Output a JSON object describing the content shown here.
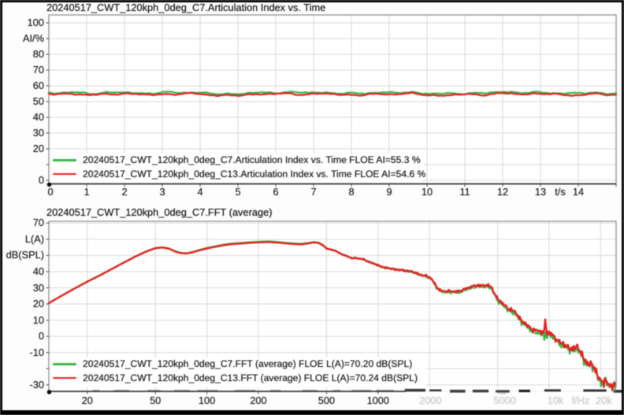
{
  "window": {
    "frame_color": "#000000",
    "background": "#ffffff"
  },
  "colors": {
    "series_green": "#3cb54a",
    "series_red": "#e32120",
    "grid": "#d8d8d8",
    "frame": "#8a8a8a",
    "axis": "#35353a",
    "text": "#161616"
  },
  "chart_data": [
    {
      "id": "articulation_index_vs_time",
      "type": "line",
      "title": "20240517_CWT_120kph_0deg_C7.Articulation Index vs. Time",
      "grid": true,
      "legend_position": "bottom-left-inside",
      "x_axis": {
        "label": "t/s",
        "scale": "linear",
        "min": 0,
        "max": 15,
        "ticks": [
          {
            "v": 0,
            "label": "0"
          },
          {
            "v": 1,
            "label": "1"
          },
          {
            "v": 2,
            "label": "2"
          },
          {
            "v": 3,
            "label": "3"
          },
          {
            "v": 4,
            "label": "4"
          },
          {
            "v": 5,
            "label": "5"
          },
          {
            "v": 6,
            "label": "6"
          },
          {
            "v": 7,
            "label": "7"
          },
          {
            "v": 8,
            "label": "8"
          },
          {
            "v": 9,
            "label": "9"
          },
          {
            "v": 10,
            "label": "10"
          },
          {
            "v": 11,
            "label": "11"
          },
          {
            "v": 12,
            "label": "12"
          },
          {
            "v": 13,
            "label": "13"
          },
          {
            "v": 14,
            "label": "14"
          }
        ]
      },
      "y_axis": {
        "label": "AI/%",
        "min": -2.25,
        "max": 105.25,
        "ticks": [
          {
            "v": 100,
            "label": "100"
          },
          {
            "v": 90,
            "label": "AI/%"
          },
          {
            "v": 80,
            "label": "80"
          },
          {
            "v": 70,
            "label": "70"
          },
          {
            "v": 60,
            "label": "60"
          },
          {
            "v": 50,
            "label": "50"
          },
          {
            "v": 40,
            "label": "40"
          },
          {
            "v": 30,
            "label": "30"
          },
          {
            "v": 20,
            "label": "20"
          },
          {
            "v": 10,
            "label": ""
          },
          {
            "v": 0,
            "label": "0"
          }
        ]
      },
      "legend": [
        {
          "series": "green",
          "label": "20240517_CWT_120kph_0deg_C7.Articulation Index vs. Time FLOE AI=55.3 %"
        },
        {
          "series": "red",
          "label": "20240517_CWT_120kph_0deg_C13.Articulation Index vs. Time FLOE AI=54.6 %"
        }
      ],
      "series": [
        {
          "name": "20240517_CWT_120kph_0deg_C7.Articulation Index vs. Time",
          "color_key": "series_green",
          "overall_value": "AI=55.3 %",
          "mean": 55.5
        },
        {
          "name": "20240517_CWT_120kph_0deg_C13.Articulation Index vs. Time",
          "color_key": "series_red",
          "overall_value": "AI=54.6 %",
          "mean": 54.6
        }
      ]
    },
    {
      "id": "fft_average",
      "type": "line",
      "title": "20240517_CWT_120kph_0deg_C7.FFT (average)",
      "grid": true,
      "legend_position": "bottom-left-inside",
      "x_axis": {
        "label": "f/Hz",
        "scale": "log",
        "min": 11.9,
        "max": 24600,
        "ticks": [
          {
            "v": 20,
            "label": "20"
          },
          {
            "v": 50,
            "label": "50"
          },
          {
            "v": 100,
            "label": "100"
          },
          {
            "v": 200,
            "label": "200"
          },
          {
            "v": 500,
            "label": "500"
          },
          {
            "v": 1000,
            "label": "1000"
          },
          {
            "v": 2000,
            "label": "2000",
            "eroded": true
          },
          {
            "v": 5000,
            "label": "5000",
            "eroded": true
          },
          {
            "v": 10000,
            "label": "10k",
            "eroded": true
          },
          {
            "v": 20000,
            "label": "20k",
            "eroded": true
          }
        ]
      },
      "y_axis": {
        "label": "dB(SPL)",
        "min": -34,
        "max": 71,
        "ticks": [
          {
            "v": 70,
            "label": "70"
          },
          {
            "v": 60,
            "label": "L(A)"
          },
          {
            "v": 50,
            "label": "dB(SPL)"
          },
          {
            "v": 40,
            "label": "40"
          },
          {
            "v": 30,
            "label": "30"
          },
          {
            "v": 20,
            "label": "20"
          },
          {
            "v": 10,
            "label": "10"
          },
          {
            "v": 0,
            "label": "0"
          },
          {
            "v": -10,
            "label": "-10"
          },
          {
            "v": -20,
            "label": ""
          },
          {
            "v": -30,
            "label": "-30"
          }
        ]
      },
      "legend": [
        {
          "series": "green",
          "label": "20240517_CWT_120kph_0deg_C7.FFT (average) FLOE L(A)=70.20 dB(SPL)"
        },
        {
          "series": "red",
          "label": "20240517_CWT_120kph_0deg_C13.FFT (average) FLOE L(A)=70.24 dB(SPL)"
        }
      ],
      "series": [
        {
          "name": "20240517_CWT_120kph_0deg_C7.FFT (average)",
          "color_key": "series_green",
          "overall_value": "L(A)=70.20 dB(SPL)"
        },
        {
          "name": "20240517_CWT_120kph_0deg_C13.FFT (average)",
          "color_key": "series_red",
          "overall_value": "L(A)=70.24 dB(SPL)"
        }
      ],
      "red_anchors": [
        [
          11.9,
          20.5
        ],
        [
          14,
          24.8
        ],
        [
          17,
          29.8
        ],
        [
          20,
          33.8
        ],
        [
          24,
          38.0
        ],
        [
          28,
          41.8
        ],
        [
          33,
          45.8
        ],
        [
          38,
          49.2
        ],
        [
          44,
          52.3
        ],
        [
          50,
          54.5
        ],
        [
          55,
          54.9
        ],
        [
          60,
          54.2
        ],
        [
          65,
          52.5
        ],
        [
          70,
          51.5
        ],
        [
          76,
          51.2
        ],
        [
          83,
          52.0
        ],
        [
          90,
          53.1
        ],
        [
          100,
          54.3
        ],
        [
          110,
          55.2
        ],
        [
          125,
          56.3
        ],
        [
          140,
          57.0
        ],
        [
          160,
          57.4
        ],
        [
          180,
          57.8
        ],
        [
          205,
          58.1
        ],
        [
          230,
          58.3
        ],
        [
          260,
          57.9
        ],
        [
          300,
          57.3
        ],
        [
          330,
          57.0
        ],
        [
          360,
          56.9
        ],
        [
          390,
          57.4
        ],
        [
          420,
          58.0
        ],
        [
          450,
          57.7
        ],
        [
          480,
          56.0
        ],
        [
          500,
          54.2
        ],
        [
          530,
          53.6
        ],
        [
          560,
          53.0
        ],
        [
          600,
          51.2
        ],
        [
          630,
          50.3
        ],
        [
          660,
          49.5
        ],
        [
          700,
          48.2
        ],
        [
          740,
          48.5
        ],
        [
          780,
          48.0
        ],
        [
          820,
          47.6
        ],
        [
          860,
          46.6
        ],
        [
          920,
          45.4
        ],
        [
          1000,
          43.9
        ],
        [
          1100,
          42.4
        ],
        [
          1240,
          41.6
        ],
        [
          1400,
          40.8
        ],
        [
          1550,
          40.2
        ],
        [
          1700,
          38.8
        ],
        [
          1850,
          37.6
        ],
        [
          2000,
          36.6
        ],
        [
          2080,
          35.0
        ],
        [
          2200,
          30.5
        ],
        [
          2300,
          28.3
        ],
        [
          2500,
          28.0
        ],
        [
          2700,
          27.7
        ],
        [
          2900,
          27.9
        ],
        [
          3100,
          28.3
        ],
        [
          3300,
          29.8
        ],
        [
          3500,
          30.8
        ],
        [
          3800,
          31.4
        ],
        [
          4100,
          31.6
        ],
        [
          4400,
          31.4
        ],
        [
          4600,
          30.5
        ],
        [
          4800,
          26.5
        ],
        [
          5000,
          23.2
        ],
        [
          5300,
          20.5
        ],
        [
          5600,
          18.4
        ],
        [
          6000,
          16.2
        ],
        [
          6300,
          15.2
        ],
        [
          6600,
          12.5
        ],
        [
          6900,
          9.8
        ],
        [
          7200,
          8.0
        ],
        [
          7600,
          5.8
        ],
        [
          8000,
          4.4
        ],
        [
          8500,
          3.6
        ],
        [
          9000,
          2.6
        ],
        [
          9350,
          2.6
        ],
        [
          9500,
          11.5
        ],
        [
          9650,
          2.4
        ],
        [
          10000,
          2.3
        ],
        [
          10500,
          0.2
        ],
        [
          11200,
          -2.2
        ],
        [
          12000,
          -4.8
        ],
        [
          12600,
          -6.3
        ],
        [
          13300,
          -7.4
        ],
        [
          14000,
          -7.2
        ],
        [
          14700,
          -6.9
        ],
        [
          15300,
          -9.5
        ],
        [
          16000,
          -14.0
        ],
        [
          16500,
          -16.2
        ],
        [
          17200,
          -17.3
        ],
        [
          18000,
          -18.2
        ],
        [
          18700,
          -20.0
        ],
        [
          19300,
          -25.0
        ],
        [
          20000,
          -28.0
        ],
        [
          20800,
          -28.5
        ],
        [
          21500,
          -27.3
        ],
        [
          22000,
          -29.0
        ],
        [
          22800,
          -30.0
        ],
        [
          23500,
          -30.5
        ],
        [
          24200,
          -31.0
        ],
        [
          24600,
          -31.8
        ]
      ],
      "green_offset_anchors": [
        [
          11.9,
          0
        ],
        [
          80,
          0.2
        ],
        [
          100,
          0.35
        ],
        [
          200,
          0.45
        ],
        [
          400,
          0.35
        ],
        [
          700,
          0.05
        ],
        [
          1500,
          -0.15
        ],
        [
          2500,
          -0.55
        ],
        [
          3500,
          -0.7
        ],
        [
          4500,
          -0.85
        ],
        [
          5000,
          -1.0
        ],
        [
          6000,
          -1.1
        ],
        [
          8000,
          -1.1
        ],
        [
          9200,
          -1.0
        ],
        [
          9500,
          -7.5
        ],
        [
          9800,
          -1.0
        ],
        [
          11000,
          -1.0
        ],
        [
          13000,
          -1.1
        ],
        [
          15000,
          -1.1
        ],
        [
          17000,
          -0.9
        ],
        [
          19000,
          -0.6
        ],
        [
          21000,
          -0.4
        ],
        [
          24600,
          -0.3
        ]
      ],
      "noise_amp_anchors": [
        [
          11.9,
          0
        ],
        [
          500,
          0
        ],
        [
          700,
          0.3
        ],
        [
          1000,
          0.45
        ],
        [
          1500,
          0.55
        ],
        [
          2500,
          0.75
        ],
        [
          4000,
          0.8
        ],
        [
          5000,
          1.0
        ],
        [
          7000,
          1.3
        ],
        [
          9000,
          1.5
        ],
        [
          12000,
          1.8
        ],
        [
          16000,
          2.2
        ],
        [
          20000,
          2.5
        ],
        [
          24600,
          2.6
        ]
      ]
    }
  ],
  "artifacts": {
    "bottom_overlay_band": "white smudge band with black dash marks over the lower frequency-axis area",
    "eroded_x_labels": [
      "2000",
      "5000",
      "10k",
      "f/Hz",
      "20k"
    ]
  }
}
